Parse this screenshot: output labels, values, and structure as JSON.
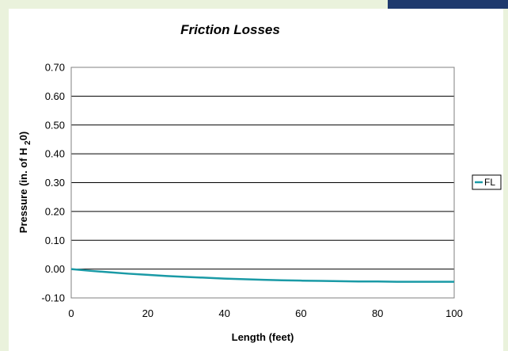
{
  "chart_data": {
    "type": "line",
    "title": "Friction Losses",
    "xlabel": "Length (feet)",
    "ylabel": "Pressure (in. of H 2 0)",
    "ylabel_parts": {
      "pre": "Pressure (in. of H ",
      "sub": "2",
      "post": "0)"
    },
    "xlim": [
      0,
      100
    ],
    "ylim": [
      -0.1,
      0.7
    ],
    "x_ticks": [
      "0",
      "20",
      "40",
      "60",
      "80",
      "100"
    ],
    "y_ticks": [
      "0.70",
      "0.60",
      "0.50",
      "0.40",
      "0.30",
      "0.20",
      "0.10",
      "0.00",
      "-0.10"
    ],
    "grid": "horizontal",
    "legend_position": "right",
    "series": [
      {
        "name": "FL",
        "color": "#1a9aa6",
        "x": [
          0,
          5,
          10,
          15,
          20,
          25,
          30,
          35,
          40,
          45,
          50,
          55,
          60,
          65,
          70,
          75,
          80,
          85,
          90,
          95,
          100
        ],
        "y": [
          0.0,
          -0.006,
          -0.011,
          -0.016,
          -0.02,
          -0.024,
          -0.027,
          -0.03,
          -0.033,
          -0.035,
          -0.037,
          -0.039,
          -0.04,
          -0.041,
          -0.042,
          -0.043,
          -0.043,
          -0.044,
          -0.044,
          -0.044,
          -0.044
        ]
      }
    ]
  }
}
